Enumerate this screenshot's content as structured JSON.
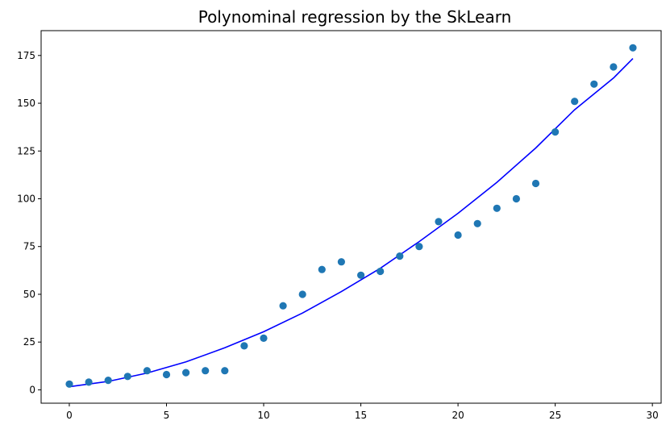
{
  "chart_data": {
    "type": "scatter",
    "title": "Polynominal regression by the SkLearn",
    "xlabel": "",
    "ylabel": "",
    "xlim": [
      -1.45,
      30.45
    ],
    "ylim": [
      -7,
      188
    ],
    "grid": false,
    "x_ticks": [
      0,
      5,
      10,
      15,
      20,
      25,
      30
    ],
    "y_ticks": [
      0,
      25,
      50,
      75,
      100,
      125,
      150,
      175
    ],
    "series": [
      {
        "kind": "scatter",
        "color": "#1f77b4",
        "points": [
          [
            0,
            3
          ],
          [
            1,
            4
          ],
          [
            2,
            5
          ],
          [
            3,
            7
          ],
          [
            4,
            10
          ],
          [
            5,
            8
          ],
          [
            6,
            9
          ],
          [
            7,
            10
          ],
          [
            8,
            10
          ],
          [
            9,
            23
          ],
          [
            10,
            27
          ],
          [
            11,
            44
          ],
          [
            12,
            50
          ],
          [
            13,
            63
          ],
          [
            14,
            67
          ],
          [
            15,
            60
          ],
          [
            16,
            62
          ],
          [
            17,
            70
          ],
          [
            18,
            75
          ],
          [
            19,
            88
          ],
          [
            20,
            81
          ],
          [
            21,
            87
          ],
          [
            22,
            95
          ],
          [
            23,
            100
          ],
          [
            24,
            108
          ],
          [
            25,
            135
          ],
          [
            26,
            151
          ],
          [
            27,
            160
          ],
          [
            28,
            169
          ],
          [
            29,
            179
          ]
        ]
      },
      {
        "kind": "line",
        "color": "#0000ff",
        "points": [
          [
            0,
            1.6
          ],
          [
            2,
            4.4
          ],
          [
            4,
            8.8
          ],
          [
            6,
            14.6
          ],
          [
            8,
            22
          ],
          [
            10,
            30.4
          ],
          [
            12,
            40.2
          ],
          [
            14,
            51.4
          ],
          [
            16,
            63.6
          ],
          [
            18,
            77.6
          ],
          [
            20,
            92.4
          ],
          [
            22,
            108.6
          ],
          [
            24,
            126.6
          ],
          [
            26,
            146.6
          ],
          [
            28,
            163.2
          ],
          [
            29,
            173.4
          ]
        ]
      }
    ]
  }
}
